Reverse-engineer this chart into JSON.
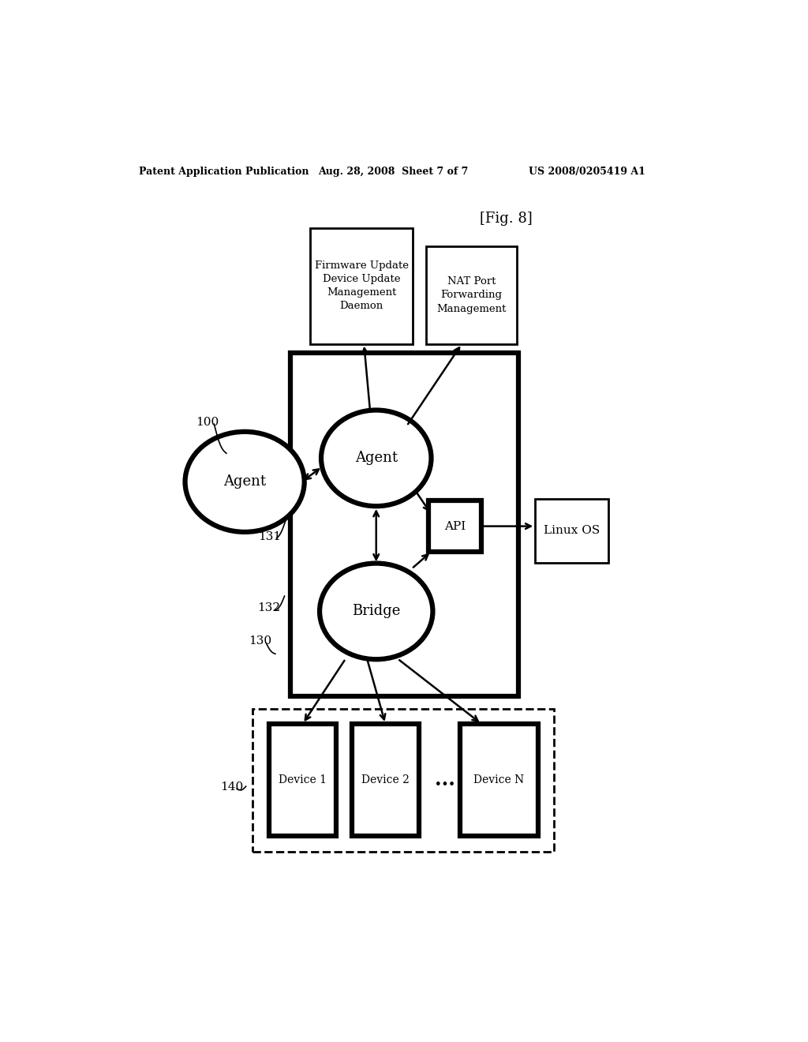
{
  "bg_color": "#ffffff",
  "header_left": "Patent Application Publication",
  "header_center": "Aug. 28, 2008  Sheet 7 of 7",
  "header_right": "US 2008/0205419 A1",
  "fig_label": "[Fig. 8]",
  "label_agent_outer": "Agent",
  "label_agent_inner": "Agent",
  "label_bridge": "Bridge",
  "label_api": "API",
  "label_linux": "Linux OS",
  "label_firmware": "Firmware Update\nDevice Update\nManagement\nDaemon",
  "label_nat": "NAT Port\nForwarding\nManagement",
  "label_d1": "Device 1",
  "label_d2": "Device 2",
  "label_dN": "Device N",
  "ref_100": "100",
  "ref_130": "130",
  "ref_131": "131",
  "ref_132": "132",
  "ref_140": "140",
  "dots": "..."
}
